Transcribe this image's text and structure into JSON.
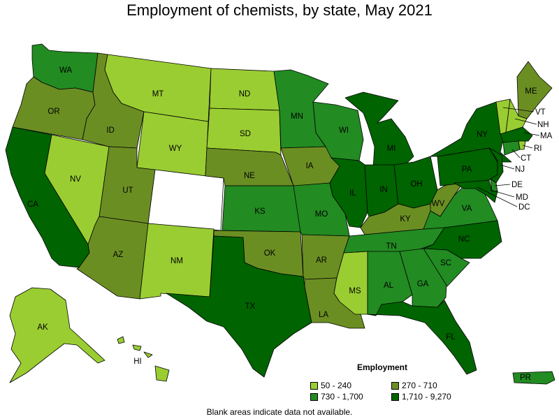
{
  "title": "Employment of chemists, by state, May 2021",
  "legend": {
    "title": "Employment",
    "items": [
      {
        "label": "50 - 240",
        "color": "#9acd32"
      },
      {
        "label": "270 - 710",
        "color": "#6b8e23"
      },
      {
        "label": "730 - 1,700",
        "color": "#228b22"
      },
      {
        "label": "1,710 - 9,270",
        "color": "#006400"
      }
    ]
  },
  "footnote": "Blank areas indicate data not available.",
  "states": {
    "WA": 2,
    "OR": 1,
    "CA": 3,
    "NV": 0,
    "ID": 1,
    "MT": 0,
    "WY": 0,
    "UT": 1,
    "AZ": 1,
    "CO": -1,
    "NM": 0,
    "ND": 0,
    "SD": 0,
    "NE": 1,
    "KS": 2,
    "OK": 1,
    "TX": 3,
    "MN": 2,
    "IA": 1,
    "MO": 2,
    "AR": 1,
    "LA": 1,
    "WI": 2,
    "IL": 3,
    "MS": 0,
    "MI": 3,
    "IN": 3,
    "KY": 1,
    "TN": 2,
    "AL": 2,
    "GA": 2,
    "FL": 3,
    "OH": 3,
    "WV": 1,
    "VA": 2,
    "NC": 3,
    "SC": 2,
    "PA": 3,
    "NY": 3,
    "ME": 1,
    "VT": 0,
    "NH": 0,
    "MA": 3,
    "RI": 0,
    "CT": 2,
    "NJ": 3,
    "DE": 2,
    "MD": 3,
    "DC": 3,
    "AK": 0,
    "HI": 0,
    "PR": 2
  }
}
